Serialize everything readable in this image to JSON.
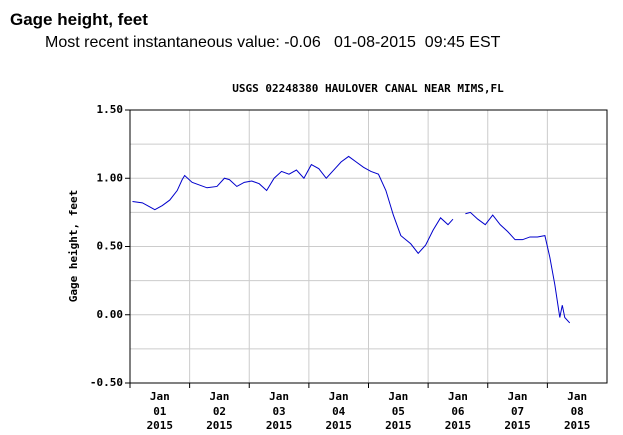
{
  "header": {
    "title": "Gage height, feet",
    "subtitle": "Most recent instantaneous value: -0.06   01-08-2015  09:45 EST"
  },
  "chart_data": {
    "type": "line",
    "title": "USGS 02248380 HAULOVER CANAL NEAR MIMS,FL",
    "ylabel": "Gage height, feet",
    "color": "#0000cc",
    "grid": true,
    "xlim": [
      "2015-01-01",
      "2015-01-09"
    ],
    "xticks": [
      {
        "value": "2015-01-01",
        "label": "Jan\n01\n2015"
      },
      {
        "value": "2015-01-02",
        "label": "Jan\n02\n2015"
      },
      {
        "value": "2015-01-03",
        "label": "Jan\n03\n2015"
      },
      {
        "value": "2015-01-04",
        "label": "Jan\n04\n2015"
      },
      {
        "value": "2015-01-05",
        "label": "Jan\n05\n2015"
      },
      {
        "value": "2015-01-06",
        "label": "Jan\n06\n2015"
      },
      {
        "value": "2015-01-07",
        "label": "Jan\n07\n2015"
      },
      {
        "value": "2015-01-08",
        "label": "Jan\n08\n2015"
      }
    ],
    "ylim": [
      -0.5,
      1.5
    ],
    "yticks": [
      {
        "value": 1.5,
        "label": "1.50"
      },
      {
        "value": 1.0,
        "label": "1.00"
      },
      {
        "value": 0.5,
        "label": "0.50"
      },
      {
        "value": 0.0,
        "label": "0.00"
      },
      {
        "value": -0.5,
        "label": "-0.50"
      }
    ],
    "yminor_ticks": [
      1.25,
      0.75,
      0.25,
      -0.25
    ],
    "x": [
      "2015-01-01T01:00",
      "2015-01-01T05:00",
      "2015-01-01T08:00",
      "2015-01-01T10:00",
      "2015-01-01T13:00",
      "2015-01-01T16:00",
      "2015-01-01T19:00",
      "2015-01-01T21:00",
      "2015-01-01T22:00",
      "2015-01-02T01:00",
      "2015-01-02T04:00",
      "2015-01-02T07:00",
      "2015-01-02T11:00",
      "2015-01-02T14:00",
      "2015-01-02T16:00",
      "2015-01-02T19:00",
      "2015-01-02T22:00",
      "2015-01-03T01:00",
      "2015-01-03T04:00",
      "2015-01-03T07:00",
      "2015-01-03T10:00",
      "2015-01-03T13:00",
      "2015-01-03T16:00",
      "2015-01-03T19:00",
      "2015-01-03T22:00",
      "2015-01-04T01:00",
      "2015-01-04T04:00",
      "2015-01-04T07:00",
      "2015-01-04T10:00",
      "2015-01-04T13:00",
      "2015-01-04T16:00",
      "2015-01-04T19:00",
      "2015-01-04T22:00",
      "2015-01-05T01:00",
      "2015-01-05T04:00",
      "2015-01-05T07:00",
      "2015-01-05T10:00",
      "2015-01-05T13:00",
      "2015-01-05T17:00",
      "2015-01-05T20:00",
      "2015-01-05T23:00",
      "2015-01-06T02:00",
      "2015-01-06T05:00",
      "2015-01-06T08:00",
      "2015-01-06T10:00",
      "2015-01-06T12:00",
      "2015-01-06T15:00",
      "2015-01-06T17:00",
      "2015-01-06T20:00",
      "2015-01-06T23:00",
      "2015-01-07T02:00",
      "2015-01-07T05:00",
      "2015-01-07T08:00",
      "2015-01-07T11:00",
      "2015-01-07T14:00",
      "2015-01-07T17:00",
      "2015-01-07T20:00",
      "2015-01-07T23:00",
      "2015-01-08T01:00",
      "2015-01-08T03:00",
      "2015-01-08T05:00",
      "2015-01-08T06:00",
      "2015-01-08T07:00",
      "2015-01-08T09:00"
    ],
    "values": [
      0.83,
      0.82,
      0.79,
      0.77,
      0.8,
      0.84,
      0.91,
      0.99,
      1.02,
      0.97,
      0.95,
      0.93,
      0.94,
      1.0,
      0.99,
      0.94,
      0.97,
      0.98,
      0.96,
      0.91,
      1.0,
      1.05,
      1.03,
      1.06,
      1.0,
      1.1,
      1.07,
      1.0,
      1.06,
      1.12,
      1.16,
      1.12,
      1.08,
      1.05,
      1.03,
      0.91,
      0.73,
      0.58,
      0.52,
      0.45,
      0.51,
      0.62,
      0.71,
      0.66,
      0.7,
      null,
      0.74,
      0.75,
      0.7,
      0.66,
      0.73,
      0.66,
      0.61,
      0.55,
      0.55,
      0.57,
      0.57,
      0.58,
      0.42,
      0.22,
      -0.02,
      0.07,
      -0.02,
      -0.06
    ]
  }
}
